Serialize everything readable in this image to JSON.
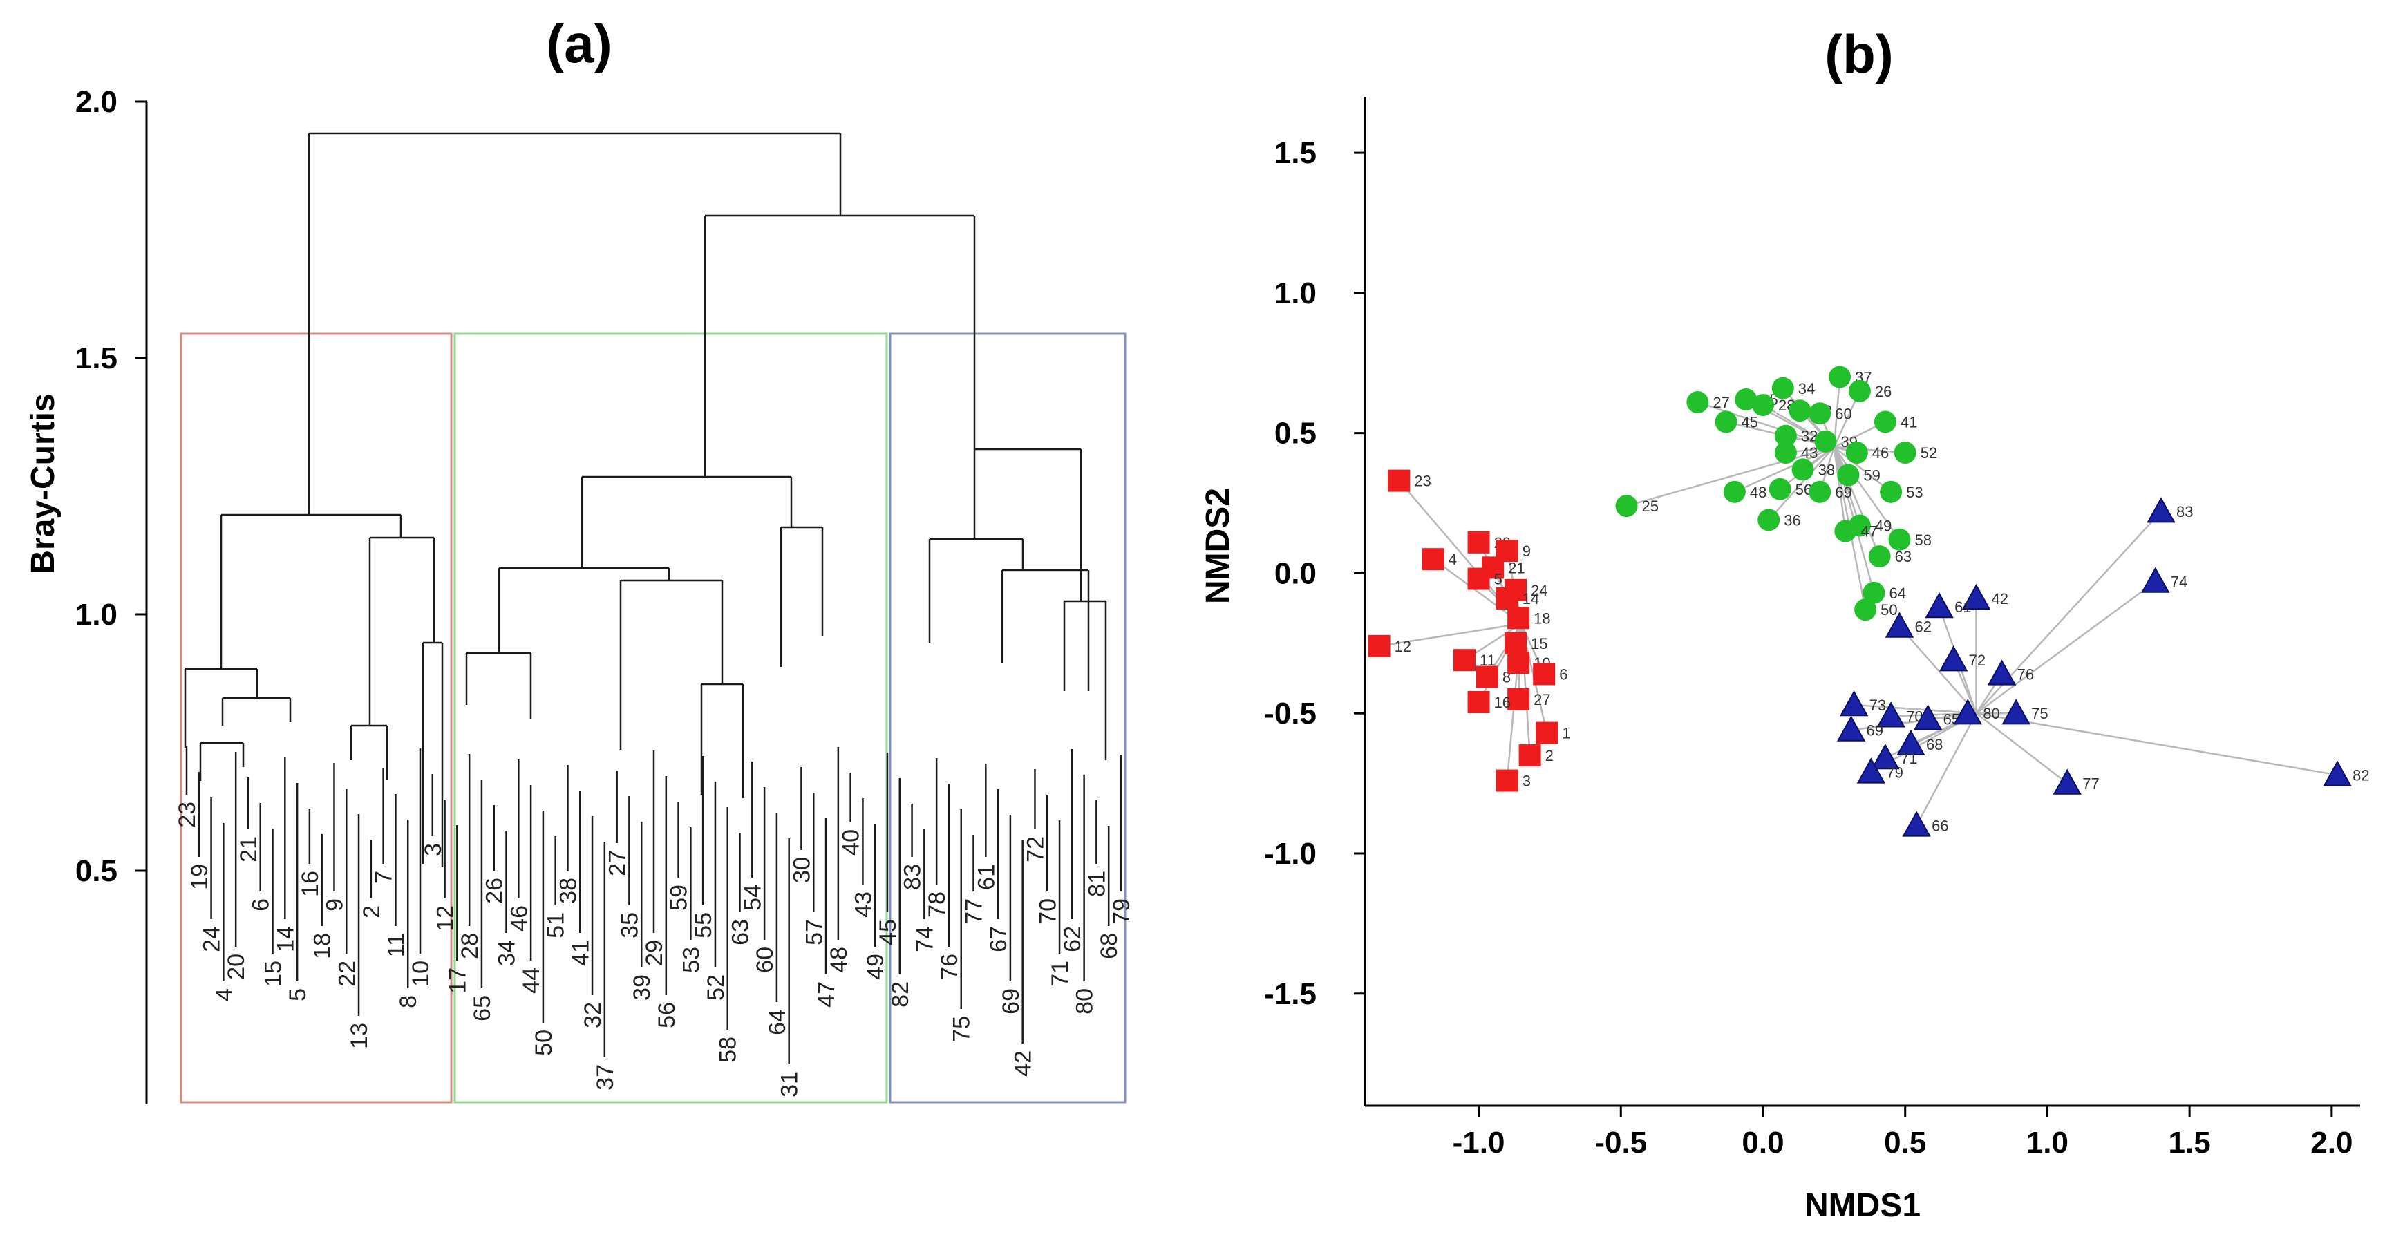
{
  "chart_data": [
    {
      "type": "dendrogram",
      "panel_label": "(a)",
      "ylabel": "Bray-Curtis",
      "yticks": [
        "2.0",
        "1.5",
        "1.0",
        "0.5"
      ],
      "ylim": [
        0.0,
        2.0
      ],
      "leaf_order": [
        "23",
        "19",
        "24",
        "4",
        "20",
        "21",
        "6",
        "15",
        "14",
        "5",
        "16",
        "18",
        "9",
        "22",
        "13",
        "2",
        "7",
        "11",
        "8",
        "10",
        "3",
        "12",
        "17",
        "28",
        "65",
        "26",
        "34",
        "46",
        "44",
        "50",
        "51",
        "38",
        "41",
        "32",
        "37",
        "27",
        "35",
        "39",
        "29",
        "56",
        "59",
        "53",
        "55",
        "52",
        "58",
        "63",
        "54",
        "60",
        "64",
        "31",
        "30",
        "57",
        "47",
        "48",
        "40",
        "43",
        "49",
        "45",
        "82",
        "83",
        "74",
        "78",
        "76",
        "75",
        "77",
        "61",
        "67",
        "69",
        "42",
        "72",
        "70",
        "71",
        "62",
        "80",
        "81",
        "68",
        "79"
      ],
      "merges": [
        {
          "group": "r",
          "height": 0.5
        },
        {
          "group": "r",
          "height": 0.6
        },
        {
          "group": "r",
          "height": 0.75
        },
        {
          "group": "r",
          "height": 0.9
        },
        {
          "group": "r",
          "height": 1.19
        },
        {
          "group": "g",
          "height": 0.9
        },
        {
          "group": "g",
          "height": 1.2
        },
        {
          "group": "g",
          "height": 1.35
        },
        {
          "group": "b",
          "height": 0.95
        },
        {
          "group": "b",
          "height": 1.31
        },
        {
          "group": "root",
          "height": 1.78
        },
        {
          "group": "root",
          "height": 1.95
        }
      ],
      "clusters": [
        {
          "name": "red",
          "color": "#d98a80"
        },
        {
          "name": "green",
          "color": "#8fd88f"
        },
        {
          "name": "blue",
          "color": "#8090c0"
        }
      ]
    },
    {
      "type": "scatter",
      "panel_label": "(b)",
      "xlabel": "NMDS1",
      "ylabel": "NMDS2",
      "xlim": [
        -1.4,
        2.1
      ],
      "ylim": [
        -1.9,
        1.7
      ],
      "xticks": [
        "-1.0",
        "-0.5",
        "0.0",
        "0.5",
        "1.0",
        "1.5",
        "2.0"
      ],
      "yticks": [
        "1.5",
        "1.0",
        "0.5",
        "0.0",
        "-0.5",
        "-1.0",
        "-1.5"
      ],
      "series": [
        {
          "name": "red",
          "marker": "square",
          "color": "#ee1c1c",
          "centroid": [
            -0.85,
            -0.18
          ],
          "points": [
            {
              "label": "23",
              "x": -1.28,
              "y": 0.33
            },
            {
              "label": "12",
              "x": -1.35,
              "y": -0.26
            },
            {
              "label": "4",
              "x": -1.16,
              "y": 0.05
            },
            {
              "label": "20",
              "x": -1.0,
              "y": 0.11
            },
            {
              "label": "9",
              "x": -0.9,
              "y": 0.08
            },
            {
              "label": "21",
              "x": -0.95,
              "y": 0.02
            },
            {
              "label": "5",
              "x": -1.0,
              "y": -0.02
            },
            {
              "label": "24",
              "x": -0.87,
              "y": -0.06
            },
            {
              "label": "18",
              "x": -0.86,
              "y": -0.16
            },
            {
              "label": "14",
              "x": -0.9,
              "y": -0.09
            },
            {
              "label": "15",
              "x": -0.87,
              "y": -0.25
            },
            {
              "label": "11",
              "x": -1.05,
              "y": -0.31
            },
            {
              "label": "8",
              "x": -0.97,
              "y": -0.37
            },
            {
              "label": "10",
              "x": -0.86,
              "y": -0.32
            },
            {
              "label": "6",
              "x": -0.77,
              "y": -0.36
            },
            {
              "label": "27",
              "x": -0.86,
              "y": -0.45
            },
            {
              "label": "16",
              "x": -1.0,
              "y": -0.46
            },
            {
              "label": "1",
              "x": -0.76,
              "y": -0.57
            },
            {
              "label": "2",
              "x": -0.82,
              "y": -0.65
            },
            {
              "label": "3",
              "x": -0.9,
              "y": -0.74
            }
          ]
        },
        {
          "name": "green",
          "marker": "circle",
          "color": "#22c02a",
          "centroid": [
            0.25,
            0.45
          ],
          "points": [
            {
              "label": "25",
              "x": -0.48,
              "y": 0.24
            },
            {
              "label": "27",
              "x": -0.23,
              "y": 0.61
            },
            {
              "label": "45",
              "x": -0.13,
              "y": 0.54
            },
            {
              "label": "35",
              "x": -0.06,
              "y": 0.62
            },
            {
              "label": "34",
              "x": 0.07,
              "y": 0.66
            },
            {
              "label": "28",
              "x": 0.0,
              "y": 0.6
            },
            {
              "label": "33",
              "x": 0.13,
              "y": 0.58
            },
            {
              "label": "60",
              "x": 0.2,
              "y": 0.57
            },
            {
              "label": "37",
              "x": 0.27,
              "y": 0.7
            },
            {
              "label": "26",
              "x": 0.34,
              "y": 0.65
            },
            {
              "label": "41",
              "x": 0.43,
              "y": 0.54
            },
            {
              "label": "32",
              "x": 0.08,
              "y": 0.49
            },
            {
              "label": "39",
              "x": 0.22,
              "y": 0.47
            },
            {
              "label": "43",
              "x": 0.08,
              "y": 0.43
            },
            {
              "label": "46",
              "x": 0.33,
              "y": 0.43
            },
            {
              "label": "52",
              "x": 0.5,
              "y": 0.43
            },
            {
              "label": "38",
              "x": 0.14,
              "y": 0.37
            },
            {
              "label": "59",
              "x": 0.3,
              "y": 0.35
            },
            {
              "label": "48",
              "x": -0.1,
              "y": 0.29
            },
            {
              "label": "56",
              "x": 0.06,
              "y": 0.3
            },
            {
              "label": "69",
              "x": 0.2,
              "y": 0.29
            },
            {
              "label": "53",
              "x": 0.45,
              "y": 0.29
            },
            {
              "label": "36",
              "x": 0.02,
              "y": 0.19
            },
            {
              "label": "49",
              "x": 0.34,
              "y": 0.17
            },
            {
              "label": "47",
              "x": 0.29,
              "y": 0.15
            },
            {
              "label": "58",
              "x": 0.48,
              "y": 0.12
            },
            {
              "label": "63",
              "x": 0.41,
              "y": 0.06
            },
            {
              "label": "64",
              "x": 0.39,
              "y": -0.07
            },
            {
              "label": "50",
              "x": 0.36,
              "y": -0.13
            }
          ]
        },
        {
          "name": "blue",
          "marker": "triangle",
          "color": "#1a23a8",
          "centroid": [
            0.75,
            -0.5
          ],
          "points": [
            {
              "label": "83",
              "x": 1.4,
              "y": 0.22
            },
            {
              "label": "74",
              "x": 1.38,
              "y": -0.03
            },
            {
              "label": "82",
              "x": 2.02,
              "y": -0.72
            },
            {
              "label": "42",
              "x": 0.75,
              "y": -0.09
            },
            {
              "label": "61",
              "x": 0.62,
              "y": -0.12
            },
            {
              "label": "62",
              "x": 0.48,
              "y": -0.19
            },
            {
              "label": "72",
              "x": 0.67,
              "y": -0.31
            },
            {
              "label": "76",
              "x": 0.84,
              "y": -0.36
            },
            {
              "label": "73",
              "x": 0.32,
              "y": -0.47
            },
            {
              "label": "70",
              "x": 0.45,
              "y": -0.51
            },
            {
              "label": "65",
              "x": 0.58,
              "y": -0.52
            },
            {
              "label": "80",
              "x": 0.72,
              "y": -0.5
            },
            {
              "label": "75",
              "x": 0.89,
              "y": -0.5
            },
            {
              "label": "69",
              "x": 0.31,
              "y": -0.56
            },
            {
              "label": "68",
              "x": 0.52,
              "y": -0.61
            },
            {
              "label": "71",
              "x": 0.43,
              "y": -0.66
            },
            {
              "label": "79",
              "x": 0.38,
              "y": -0.71
            },
            {
              "label": "77",
              "x": 1.07,
              "y": -0.75
            },
            {
              "label": "66",
              "x": 0.54,
              "y": -0.9
            }
          ]
        }
      ]
    }
  ]
}
